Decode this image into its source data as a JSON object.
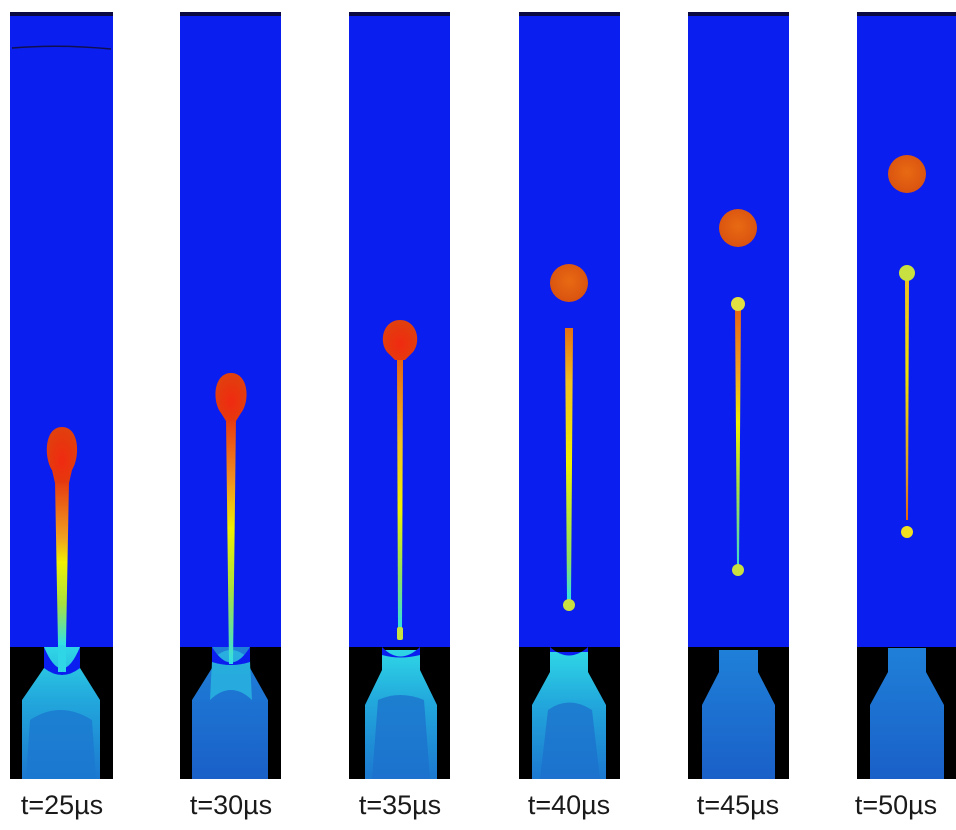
{
  "frames": [
    {
      "label": "t=25µs"
    },
    {
      "label": "t=30µs"
    },
    {
      "label": "t=35µs"
    },
    {
      "label": "t=40µs"
    },
    {
      "label": "t=45µs"
    },
    {
      "label": "t=50µs"
    }
  ],
  "colors": {
    "air": "#0a1ef0",
    "nozzle_wall": "#000000",
    "nozzle_fluid_dark": "#1f73d6",
    "nozzle_fluid_mid": "#1ea0d8",
    "nozzle_fluid_light": "#2fd6e6",
    "drop_red": "#e93a10",
    "drop_orange": "#e66410",
    "tail_yellow": "#f0f000",
    "tail_green": "#a8e040",
    "tail_cyan": "#30e0e8"
  }
}
